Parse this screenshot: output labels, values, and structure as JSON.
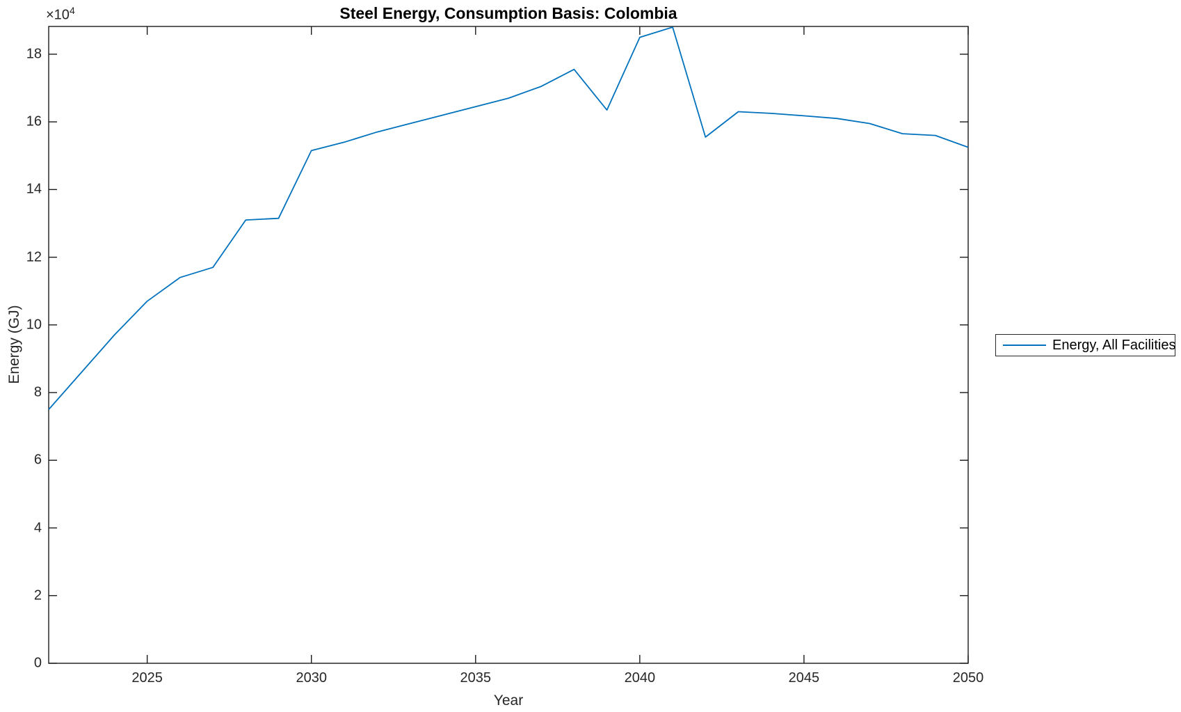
{
  "figure": {
    "title": "Steel Energy, Consumption Basis: Colombia",
    "y_exponent_base": "×10",
    "y_exponent_power": "4"
  },
  "chart_data": {
    "type": "line",
    "title": "Steel Energy, Consumption Basis: Colombia",
    "xlabel": "Year",
    "ylabel": "Energy (GJ)",
    "grid": false,
    "legend_position": "right-outside",
    "xlim": [
      2022,
      2050
    ],
    "ylim": [
      0,
      188200
    ],
    "x_ticks": [
      2025,
      2030,
      2035,
      2040,
      2045,
      2050
    ],
    "y_ticks": [
      0,
      20000,
      40000,
      60000,
      80000,
      100000,
      120000,
      140000,
      160000,
      180000
    ],
    "y_tick_labels": [
      "0",
      "2",
      "4",
      "6",
      "8",
      "10",
      "12",
      "14",
      "16",
      "18"
    ],
    "x": [
      2022,
      2023,
      2024,
      2025,
      2026,
      2027,
      2028,
      2029,
      2030,
      2031,
      2032,
      2033,
      2034,
      2035,
      2036,
      2037,
      2038,
      2039,
      2040,
      2041,
      2042,
      2043,
      2044,
      2045,
      2046,
      2047,
      2048,
      2049,
      2050
    ],
    "series": [
      {
        "name": "Energy, All Facilities",
        "color": "#0072BD",
        "values": [
          75000,
          86000,
          97000,
          107000,
          114000,
          117000,
          131000,
          131500,
          151500,
          154000,
          157000,
          159500,
          162000,
          164500,
          167000,
          170500,
          175500,
          163500,
          185000,
          188000,
          155500,
          163000,
          162500,
          161800,
          161000,
          159500,
          156500,
          156000,
          152500
        ]
      }
    ]
  },
  "legend": {
    "entries": [
      {
        "label": "Energy, All Facilities",
        "color": "#0072BD"
      }
    ]
  }
}
